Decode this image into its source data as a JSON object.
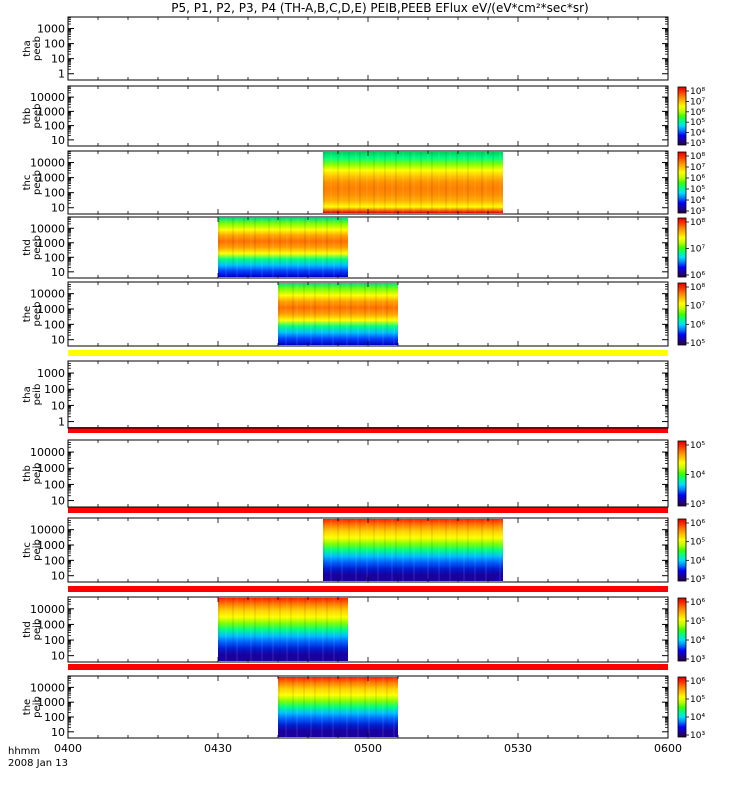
{
  "title": "P5, P1, P2, P3, P4 (TH-A,B,C,D,E) PEIB,PEEB EFlux eV/(eV*cm²*sec*sr)",
  "xaxis": {
    "label_line1": "hhmm",
    "label_line2": "2008 Jan 13",
    "ticks": [
      "0400",
      "0430",
      "0500",
      "0530",
      "0600"
    ],
    "range_minutes": [
      0,
      120
    ]
  },
  "chart_data": [
    {
      "type": "heatmap",
      "probe": "tha",
      "product": "peeb",
      "ylabel": [
        "tha",
        "peeb"
      ],
      "yticks": [
        "1",
        "10",
        "100",
        "1000"
      ],
      "ylog": true,
      "has_colorbar": false,
      "data_segments": []
    },
    {
      "type": "heatmap",
      "probe": "thb",
      "product": "peeb",
      "ylabel": [
        "thb",
        "peeb"
      ],
      "yticks": [
        "10",
        "100",
        "1000",
        "10000"
      ],
      "ylog": true,
      "has_colorbar": true,
      "colorbar_ticks": [
        "10³",
        "10⁴",
        "10⁵",
        "10⁶",
        "10⁷",
        "10⁸"
      ],
      "data_segments": []
    },
    {
      "type": "heatmap",
      "probe": "thc",
      "product": "peeb",
      "ylabel": [
        "thc",
        "peeb"
      ],
      "yticks": [
        "10",
        "100",
        "1000",
        "10000"
      ],
      "ylog": true,
      "has_colorbar": true,
      "colorbar_ticks": [
        "10³",
        "10⁴",
        "10⁵",
        "10⁶",
        "10⁷",
        "10⁸"
      ],
      "data_segments": [
        {
          "start_min": 51,
          "end_min": 87,
          "style": "peeb_warm"
        }
      ]
    },
    {
      "type": "heatmap",
      "probe": "thd",
      "product": "peeb",
      "ylabel": [
        "thd",
        "peeb"
      ],
      "yticks": [
        "10",
        "100",
        "1000",
        "10000"
      ],
      "ylog": true,
      "has_colorbar": true,
      "colorbar_ticks": [
        "10⁶",
        "10⁷",
        "10⁸"
      ],
      "data_segments": [
        {
          "start_min": 30,
          "end_min": 56,
          "style": "peeb_cool"
        }
      ]
    },
    {
      "type": "heatmap",
      "probe": "the",
      "product": "peeb",
      "ylabel": [
        "the",
        "peeb"
      ],
      "yticks": [
        "10",
        "100",
        "1000",
        "10000"
      ],
      "ylog": true,
      "has_colorbar": true,
      "colorbar_ticks": [
        "10⁵",
        "10⁶",
        "10⁷",
        "10⁸"
      ],
      "data_segments": [
        {
          "start_min": 42,
          "end_min": 66,
          "style": "peeb_cool"
        }
      ]
    },
    {
      "type": "heatmap",
      "probe": "tha",
      "product": "peib",
      "ylabel": [
        "tha",
        "peib"
      ],
      "yticks": [
        "1",
        "10",
        "100",
        "1000"
      ],
      "ylog": true,
      "has_colorbar": false,
      "data_segments": []
    },
    {
      "type": "heatmap",
      "probe": "thb",
      "product": "peib",
      "ylabel": [
        "thb",
        "peib"
      ],
      "yticks": [
        "10",
        "100",
        "1000",
        "10000"
      ],
      "ylog": true,
      "has_colorbar": true,
      "colorbar_ticks": [
        "10³",
        "10⁴",
        "10⁵"
      ],
      "data_segments": []
    },
    {
      "type": "heatmap",
      "probe": "thc",
      "product": "peib",
      "ylabel": [
        "thc",
        "peib"
      ],
      "yticks": [
        "10",
        "100",
        "1000",
        "10000"
      ],
      "ylog": true,
      "has_colorbar": true,
      "colorbar_ticks": [
        "10³",
        "10⁴",
        "10⁵",
        "10⁶"
      ],
      "data_segments": [
        {
          "start_min": 51,
          "end_min": 87,
          "style": "peib"
        }
      ]
    },
    {
      "type": "heatmap",
      "probe": "thd",
      "product": "peib",
      "ylabel": [
        "thd",
        "peib"
      ],
      "yticks": [
        "10",
        "100",
        "1000",
        "10000"
      ],
      "ylog": true,
      "has_colorbar": true,
      "colorbar_ticks": [
        "10³",
        "10⁴",
        "10⁵",
        "10⁶"
      ],
      "data_segments": [
        {
          "start_min": 30,
          "end_min": 56,
          "style": "peib"
        }
      ]
    },
    {
      "type": "heatmap",
      "probe": "the",
      "product": "peib",
      "ylabel": [
        "the",
        "peib"
      ],
      "yticks": [
        "10",
        "100",
        "1000",
        "10000"
      ],
      "ylog": true,
      "has_colorbar": true,
      "colorbar_ticks": [
        "10³",
        "10⁴",
        "10⁵",
        "10⁶"
      ],
      "data_segments": [
        {
          "start_min": 42,
          "end_min": 66,
          "style": "peib"
        }
      ]
    }
  ],
  "colors": {
    "separator_yellow": "#ffff00",
    "separator_red": "#ff0000",
    "colormap": [
      "#2a0040",
      "#1a00a0",
      "#0000ff",
      "#0080ff",
      "#00e0ff",
      "#00ff80",
      "#40ff00",
      "#c0ff00",
      "#ffff00",
      "#ffc000",
      "#ff8000",
      "#ff3000",
      "#e00000"
    ]
  }
}
